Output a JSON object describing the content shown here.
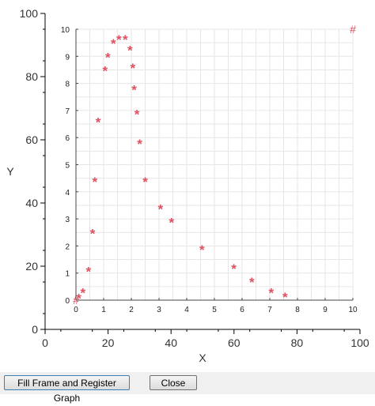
{
  "chart_data": {
    "type": "scatter",
    "outer_axes": {
      "xlabel": "X",
      "ylabel": "Y",
      "xlim": [
        0,
        100
      ],
      "ylim": [
        0,
        100
      ],
      "xticks": [
        "0",
        "20",
        "40",
        "60",
        "80",
        "100"
      ],
      "yticks": [
        "0",
        "20",
        "40",
        "60",
        "80",
        "100"
      ]
    },
    "inner_axes": {
      "xlim": [
        0,
        10
      ],
      "ylim": [
        0,
        10
      ],
      "xticks": [
        "0",
        "1",
        "2",
        "3",
        "4",
        "5",
        "6",
        "7",
        "8",
        "9",
        "10"
      ],
      "yticks": [
        "0",
        "1",
        "2",
        "3",
        "4",
        "5",
        "6",
        "7",
        "8",
        "9",
        "10"
      ],
      "grid": true
    },
    "marker": "*",
    "marker_color": "#e05060",
    "corner_markers": [
      {
        "label": "#",
        "x": 0,
        "y": 0
      },
      {
        "label": "#",
        "x": 10,
        "y": 10
      }
    ],
    "points": [
      {
        "x": 0.1,
        "y": 0.1
      },
      {
        "x": 0.25,
        "y": 0.3
      },
      {
        "x": 0.45,
        "y": 1.1
      },
      {
        "x": 0.6,
        "y": 2.5
      },
      {
        "x": 0.68,
        "y": 4.4
      },
      {
        "x": 0.8,
        "y": 6.6
      },
      {
        "x": 1.05,
        "y": 8.5
      },
      {
        "x": 1.15,
        "y": 9.0
      },
      {
        "x": 1.35,
        "y": 9.5
      },
      {
        "x": 1.55,
        "y": 9.65
      },
      {
        "x": 1.78,
        "y": 9.65
      },
      {
        "x": 1.95,
        "y": 9.25
      },
      {
        "x": 2.05,
        "y": 8.6
      },
      {
        "x": 2.1,
        "y": 7.8
      },
      {
        "x": 2.2,
        "y": 6.9
      },
      {
        "x": 2.3,
        "y": 5.8
      },
      {
        "x": 2.5,
        "y": 4.4
      },
      {
        "x": 3.05,
        "y": 3.4
      },
      {
        "x": 3.45,
        "y": 2.9
      },
      {
        "x": 4.55,
        "y": 1.9
      },
      {
        "x": 5.7,
        "y": 1.2
      },
      {
        "x": 6.35,
        "y": 0.7
      },
      {
        "x": 7.05,
        "y": 0.3
      },
      {
        "x": 7.55,
        "y": 0.15
      }
    ]
  },
  "buttons": {
    "fill_frame": "Fill Frame and Register Graph",
    "close": "Close"
  }
}
